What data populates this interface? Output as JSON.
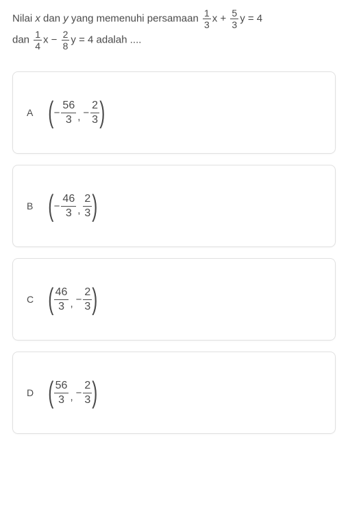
{
  "question": {
    "prefix": "Nilai ",
    "var1": "x",
    "mid1": " dan ",
    "var2": "y",
    "mid2": " yang memenuhi persamaan ",
    "eq1_f1_num": "1",
    "eq1_f1_den": "3",
    "eq1_var1": "x",
    "eq1_op1": "+",
    "eq1_f2_num": "5",
    "eq1_f2_den": "3",
    "eq1_var2": "y",
    "eq1_rhs": "= 4",
    "line2_prefix": "dan ",
    "eq2_f1_num": "1",
    "eq2_f1_den": "4",
    "eq2_var1": "x",
    "eq2_op1": "−",
    "eq2_f2_num": "2",
    "eq2_f2_den": "8",
    "eq2_var2": "y",
    "eq2_rhs": "= 4",
    "suffix": " adalah ...."
  },
  "options": [
    {
      "label": "A",
      "neg1": true,
      "num1": "56",
      "den1": "3",
      "neg2": true,
      "num2": "2",
      "den2": "3"
    },
    {
      "label": "B",
      "neg1": true,
      "num1": "46",
      "den1": "3",
      "neg2": false,
      "num2": "2",
      "den2": "3"
    },
    {
      "label": "C",
      "neg1": false,
      "num1": "46",
      "den1": "3",
      "neg2": true,
      "num2": "2",
      "den2": "3"
    },
    {
      "label": "D",
      "neg1": false,
      "num1": "56",
      "den1": "3",
      "neg2": true,
      "num2": "2",
      "den2": "3"
    }
  ],
  "colors": {
    "text": "#4a4a4a",
    "border": "#e0e0e0",
    "background": "#ffffff"
  }
}
